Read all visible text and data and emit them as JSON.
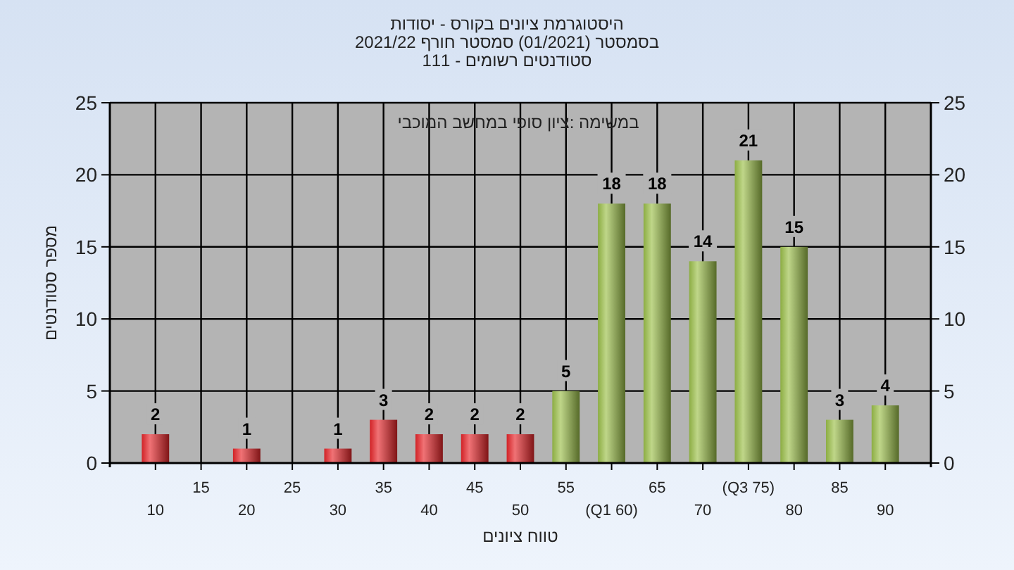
{
  "chart_data": {
    "type": "bar",
    "title": "היסטוגרמת ציונים בקורס - יסודות",
    "subtitle": "בסמסטר  (01/2021)  סמסטר חורף 2021/22\nסטודנטים רשומים - 111",
    "xlabel": "טווח ציונים",
    "ylabel": "מספר סטודנטים",
    "annotations": [
      "במשימה :ציון סופי במחשב המוכבי"
    ],
    "categories": [
      "10",
      "15",
      "20",
      "25",
      "30",
      "35",
      "40",
      "45",
      "50",
      "55",
      "(Q1 60)",
      "65",
      "70",
      "(Q3 75)",
      "80",
      "85",
      "90"
    ],
    "values": [
      2,
      0,
      1,
      0,
      1,
      3,
      2,
      2,
      2,
      5,
      18,
      18,
      14,
      21,
      15,
      3,
      4
    ],
    "colors": [
      "#e8262a",
      "#e8262a",
      "#e8262a",
      "#e8262a",
      "#e8262a",
      "#e8262a",
      "#e8262a",
      "#e8262a",
      "#e8262a",
      "#9cc04a",
      "#9cc04a",
      "#9cc04a",
      "#9cc04a",
      "#9cc04a",
      "#9cc04a",
      "#9cc04a",
      "#9cc04a"
    ],
    "value_labels": [
      "2",
      null,
      "1",
      null,
      "1",
      "3",
      "2",
      "2",
      "2",
      "5",
      "18",
      "18",
      "14",
      "21",
      "15",
      "3",
      "4"
    ],
    "ylim": [
      0,
      25
    ],
    "yticks": [
      0,
      5,
      10,
      15,
      20,
      25
    ],
    "y2lim": [
      0,
      25
    ],
    "y2ticks": [
      0,
      5,
      10,
      15,
      20,
      25
    ],
    "grid": true
  }
}
